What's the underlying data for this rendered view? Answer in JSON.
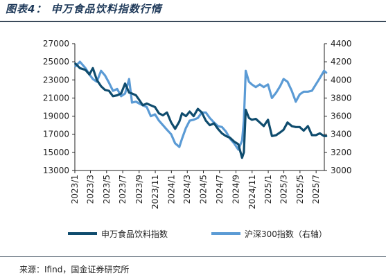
{
  "figure_title": "图表4：  申万食品饮料指数行情",
  "source_note": "来源：Ifind，国金证券研究所",
  "colors": {
    "series1": "#0f4c6e",
    "series2": "#5b9bd5"
  },
  "chart_data": {
    "type": "line",
    "title": "",
    "x_tick_labels": [
      "2023/1",
      "2023/3",
      "2023/5",
      "2023/7",
      "2023/9",
      "2023/11",
      "2024/1",
      "2024/3",
      "2024/5",
      "2024/7",
      "2024/9",
      "2024/11",
      "2025/1",
      "2025/3",
      "2025/5",
      "2025/7"
    ],
    "x_range": [
      "2023-01",
      "2025-08"
    ],
    "y_left": {
      "ylim": [
        13000,
        27000
      ],
      "ticks": [
        "13000",
        "15000",
        "17000",
        "19000",
        "21000",
        "23000",
        "25000",
        "27000"
      ]
    },
    "y_right": {
      "ylim": [
        3000,
        4400
      ],
      "ticks": [
        "3000",
        "3200",
        "3400",
        "3600",
        "3800",
        "4000",
        "4200",
        "4400"
      ]
    },
    "grid": false,
    "legend_position": "bottom",
    "series": [
      {
        "name": "申万食品饮料指数",
        "axis": "left",
        "x": [
          "2023-01-03",
          "2023-01-20",
          "2023-02-10",
          "2023-02-25",
          "2023-03-10",
          "2023-03-25",
          "2023-04-10",
          "2023-04-25",
          "2023-05-10",
          "2023-05-25",
          "2023-06-10",
          "2023-06-25",
          "2023-07-10",
          "2023-07-25",
          "2023-08-05",
          "2023-08-20",
          "2023-09-01",
          "2023-09-15",
          "2023-09-30",
          "2023-10-15",
          "2023-10-31",
          "2023-11-15",
          "2023-11-30",
          "2023-12-15",
          "2023-12-31",
          "2024-01-15",
          "2024-01-31",
          "2024-02-10",
          "2024-02-25",
          "2024-03-10",
          "2024-03-25",
          "2024-04-10",
          "2024-04-25",
          "2024-05-10",
          "2024-05-25",
          "2024-06-10",
          "2024-06-25",
          "2024-07-10",
          "2024-07-25",
          "2024-08-10",
          "2024-08-25",
          "2024-09-10",
          "2024-09-24",
          "2024-10-01",
          "2024-10-08",
          "2024-10-20",
          "2024-10-31",
          "2024-11-15",
          "2024-11-30",
          "2024-12-15",
          "2024-12-31",
          "2025-01-15",
          "2025-01-31",
          "2025-02-15",
          "2025-02-28",
          "2025-03-15",
          "2025-03-31",
          "2025-04-15",
          "2025-04-30",
          "2025-05-15",
          "2025-05-31",
          "2025-06-15",
          "2025-06-30",
          "2025-07-15",
          "2025-07-31",
          "2025-08-08"
        ],
        "values": [
          24800,
          24300,
          24100,
          23600,
          24300,
          23000,
          22300,
          21900,
          21800,
          21200,
          21300,
          21500,
          22600,
          21600,
          21500,
          21300,
          20800,
          20200,
          20400,
          20200,
          20000,
          19300,
          19100,
          19400,
          18300,
          17600,
          18400,
          19300,
          19000,
          19500,
          19000,
          19800,
          19400,
          18500,
          18000,
          18200,
          17600,
          17100,
          16800,
          16600,
          16200,
          15900,
          14400,
          15000,
          19700,
          18800,
          18600,
          18700,
          18300,
          17900,
          18600,
          16800,
          16900,
          17200,
          17500,
          18300,
          17900,
          17800,
          17800,
          17400,
          17900,
          16900,
          16900,
          17100,
          16800,
          16800
        ]
      },
      {
        "name": "沪深300指数（右轴）",
        "axis": "right",
        "x": [
          "2023-01-03",
          "2023-01-20",
          "2023-02-10",
          "2023-02-25",
          "2023-03-10",
          "2023-03-25",
          "2023-04-10",
          "2023-04-25",
          "2023-05-10",
          "2023-05-25",
          "2023-06-10",
          "2023-06-25",
          "2023-07-10",
          "2023-07-25",
          "2023-08-05",
          "2023-08-20",
          "2023-09-01",
          "2023-09-15",
          "2023-09-30",
          "2023-10-15",
          "2023-10-31",
          "2023-11-15",
          "2023-11-30",
          "2023-12-15",
          "2023-12-31",
          "2024-01-15",
          "2024-01-31",
          "2024-02-10",
          "2024-02-25",
          "2024-03-10",
          "2024-03-25",
          "2024-04-10",
          "2024-04-25",
          "2024-05-10",
          "2024-05-25",
          "2024-06-10",
          "2024-06-25",
          "2024-07-10",
          "2024-07-25",
          "2024-08-10",
          "2024-08-25",
          "2024-09-10",
          "2024-09-24",
          "2024-10-01",
          "2024-10-08",
          "2024-10-20",
          "2024-10-31",
          "2024-11-15",
          "2024-11-30",
          "2024-12-15",
          "2024-12-31",
          "2025-01-15",
          "2025-01-31",
          "2025-02-15",
          "2025-02-28",
          "2025-03-15",
          "2025-03-31",
          "2025-04-15",
          "2025-04-30",
          "2025-05-15",
          "2025-05-31",
          "2025-06-15",
          "2025-06-30",
          "2025-07-15",
          "2025-07-31",
          "2025-08-08"
        ],
        "values": [
          4150,
          4200,
          4130,
          4060,
          4010,
          3980,
          4100,
          4050,
          3970,
          3880,
          3900,
          3820,
          3850,
          4010,
          3750,
          3760,
          3740,
          3720,
          3700,
          3600,
          3620,
          3550,
          3500,
          3450,
          3400,
          3300,
          3260,
          3350,
          3470,
          3550,
          3560,
          3580,
          3640,
          3640,
          3580,
          3530,
          3490,
          3480,
          3430,
          3350,
          3300,
          3230,
          3330,
          3550,
          4100,
          3980,
          3950,
          3920,
          3950,
          3920,
          3950,
          3800,
          3860,
          3930,
          4010,
          3980,
          3880,
          3760,
          3840,
          3870,
          3870,
          3880,
          3950,
          4020,
          4100,
          4080
        ]
      }
    ]
  }
}
